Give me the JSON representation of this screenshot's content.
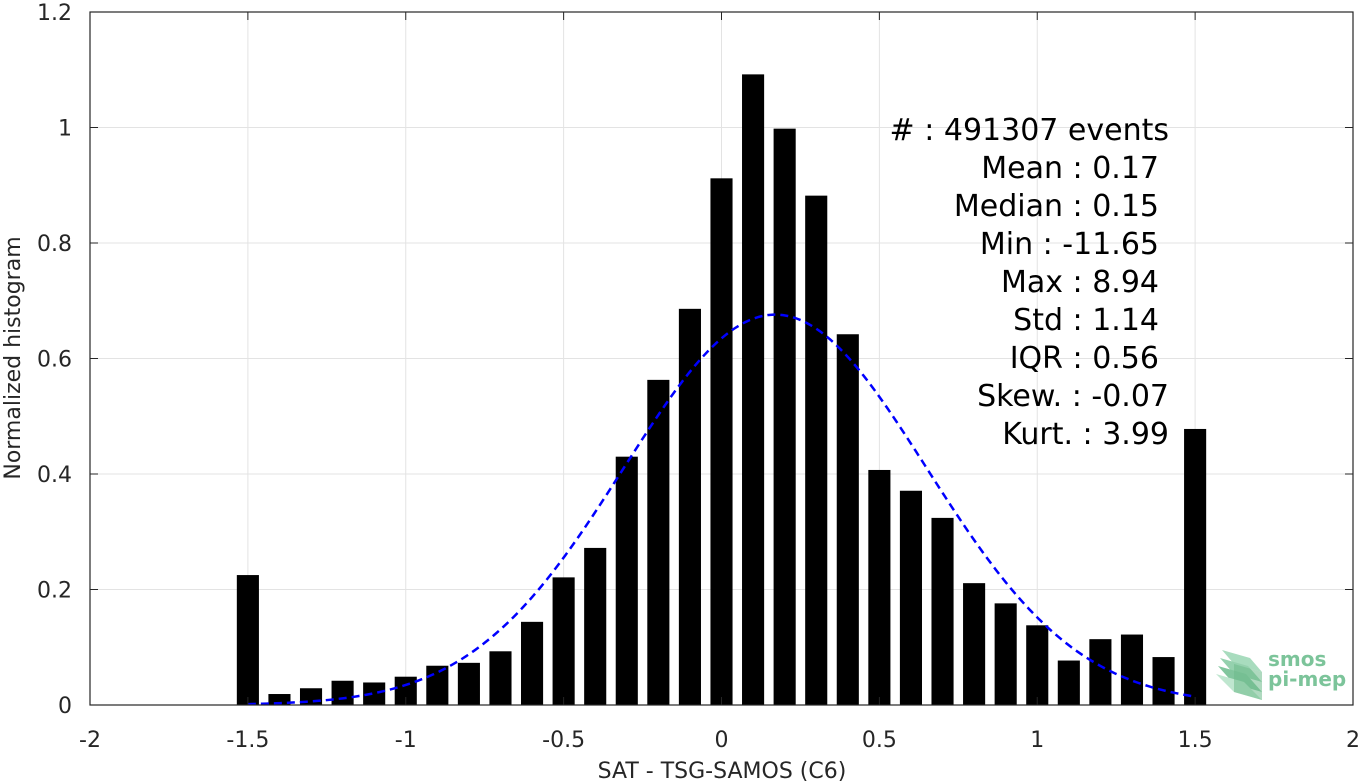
{
  "chart_data": {
    "type": "bar",
    "xlabel": "SAT - TSG-SAMOS (C6)",
    "ylabel": "Normalized histogram",
    "xlim": [
      -2,
      2
    ],
    "ylim": [
      0,
      1.2
    ],
    "xticks": [
      "-2",
      "-1.5",
      "-1",
      "-0.5",
      "0",
      "0.5",
      "1",
      "1.5",
      "2"
    ],
    "xtick_values": [
      -2,
      -1.5,
      -1,
      -0.5,
      0,
      0.5,
      1,
      1.5,
      2
    ],
    "yticks": [
      "0",
      "0.2",
      "0.4",
      "0.6",
      "0.8",
      "1",
      "1.2"
    ],
    "ytick_values": [
      0,
      0.2,
      0.4,
      0.6,
      0.8,
      1,
      1.2
    ],
    "grid": true,
    "bar_width": 0.07,
    "bars": {
      "x": [
        -1.5,
        -1.4,
        -1.3,
        -1.2,
        -1.1,
        -1.0,
        -0.9,
        -0.8,
        -0.7,
        -0.6,
        -0.5,
        -0.4,
        -0.3,
        -0.2,
        -0.1,
        0.0,
        0.1,
        0.2,
        0.3,
        0.4,
        0.5,
        0.6,
        0.7,
        0.8,
        0.9,
        1.0,
        1.1,
        1.2,
        1.3,
        1.4,
        1.5
      ],
      "y": [
        0.225,
        0.019,
        0.029,
        0.042,
        0.039,
        0.049,
        0.068,
        0.073,
        0.093,
        0.144,
        0.221,
        0.272,
        0.43,
        0.563,
        0.686,
        0.912,
        1.092,
        0.998,
        0.882,
        0.642,
        0.407,
        0.371,
        0.324,
        0.211,
        0.176,
        0.138,
        0.077,
        0.114,
        0.122,
        0.083,
        0.478
      ],
      "color": "#000000"
    },
    "fit_curve": {
      "style": "dashed",
      "color": "#0000ff",
      "mean": 0.17,
      "std": 0.48,
      "peak": 0.676,
      "x_range": [
        -1.5,
        1.5
      ]
    },
    "annotations": [
      "#  : 491307 events",
      "Mean : 0.17",
      "Median : 0.15",
      "Min : -11.65",
      "Max : 8.94",
      "Std : 1.14",
      "IQR : 0.56",
      "Skew. : -0.07",
      "Kurt. : 3.99"
    ]
  },
  "logo": {
    "line1": "smos",
    "line2": "pi-mep",
    "color": "#7cc49a"
  }
}
